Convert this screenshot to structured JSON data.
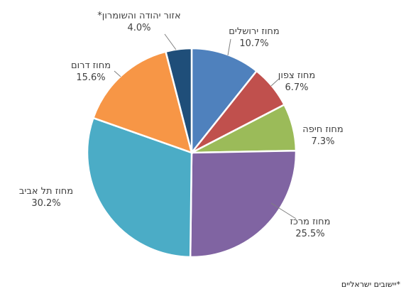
{
  "chart_data": {
    "type": "pie",
    "slices": [
      {
        "label": "מחוז ירושלים",
        "value": 10.7,
        "value_label": "10.7%",
        "color": "#4f81bd"
      },
      {
        "label": "מחוז צפון",
        "value": 6.7,
        "value_label": "6.7%",
        "color": "#c0504d"
      },
      {
        "label": "מחוז חיפה",
        "value": 7.3,
        "value_label": "7.3%",
        "color": "#9bbb59"
      },
      {
        "label": "מחוז מרכז",
        "value": 25.5,
        "value_label": "25.5%",
        "color": "#8064a2"
      },
      {
        "label": "מחוז תל אביב",
        "value": 30.2,
        "value_label": "30.2%",
        "color": "#4bacc6"
      },
      {
        "label": "מחוז דרום",
        "value": 15.6,
        "value_label": "15.6%",
        "color": "#f79646"
      },
      {
        "label": "אזור יהודה והשומרון*",
        "value": 4.0,
        "value_label": "4.0%",
        "color": "#1f4e79"
      }
    ],
    "start": "12 o'clock",
    "direction": "clockwise"
  },
  "footnote": "*יישובים ישראליים"
}
